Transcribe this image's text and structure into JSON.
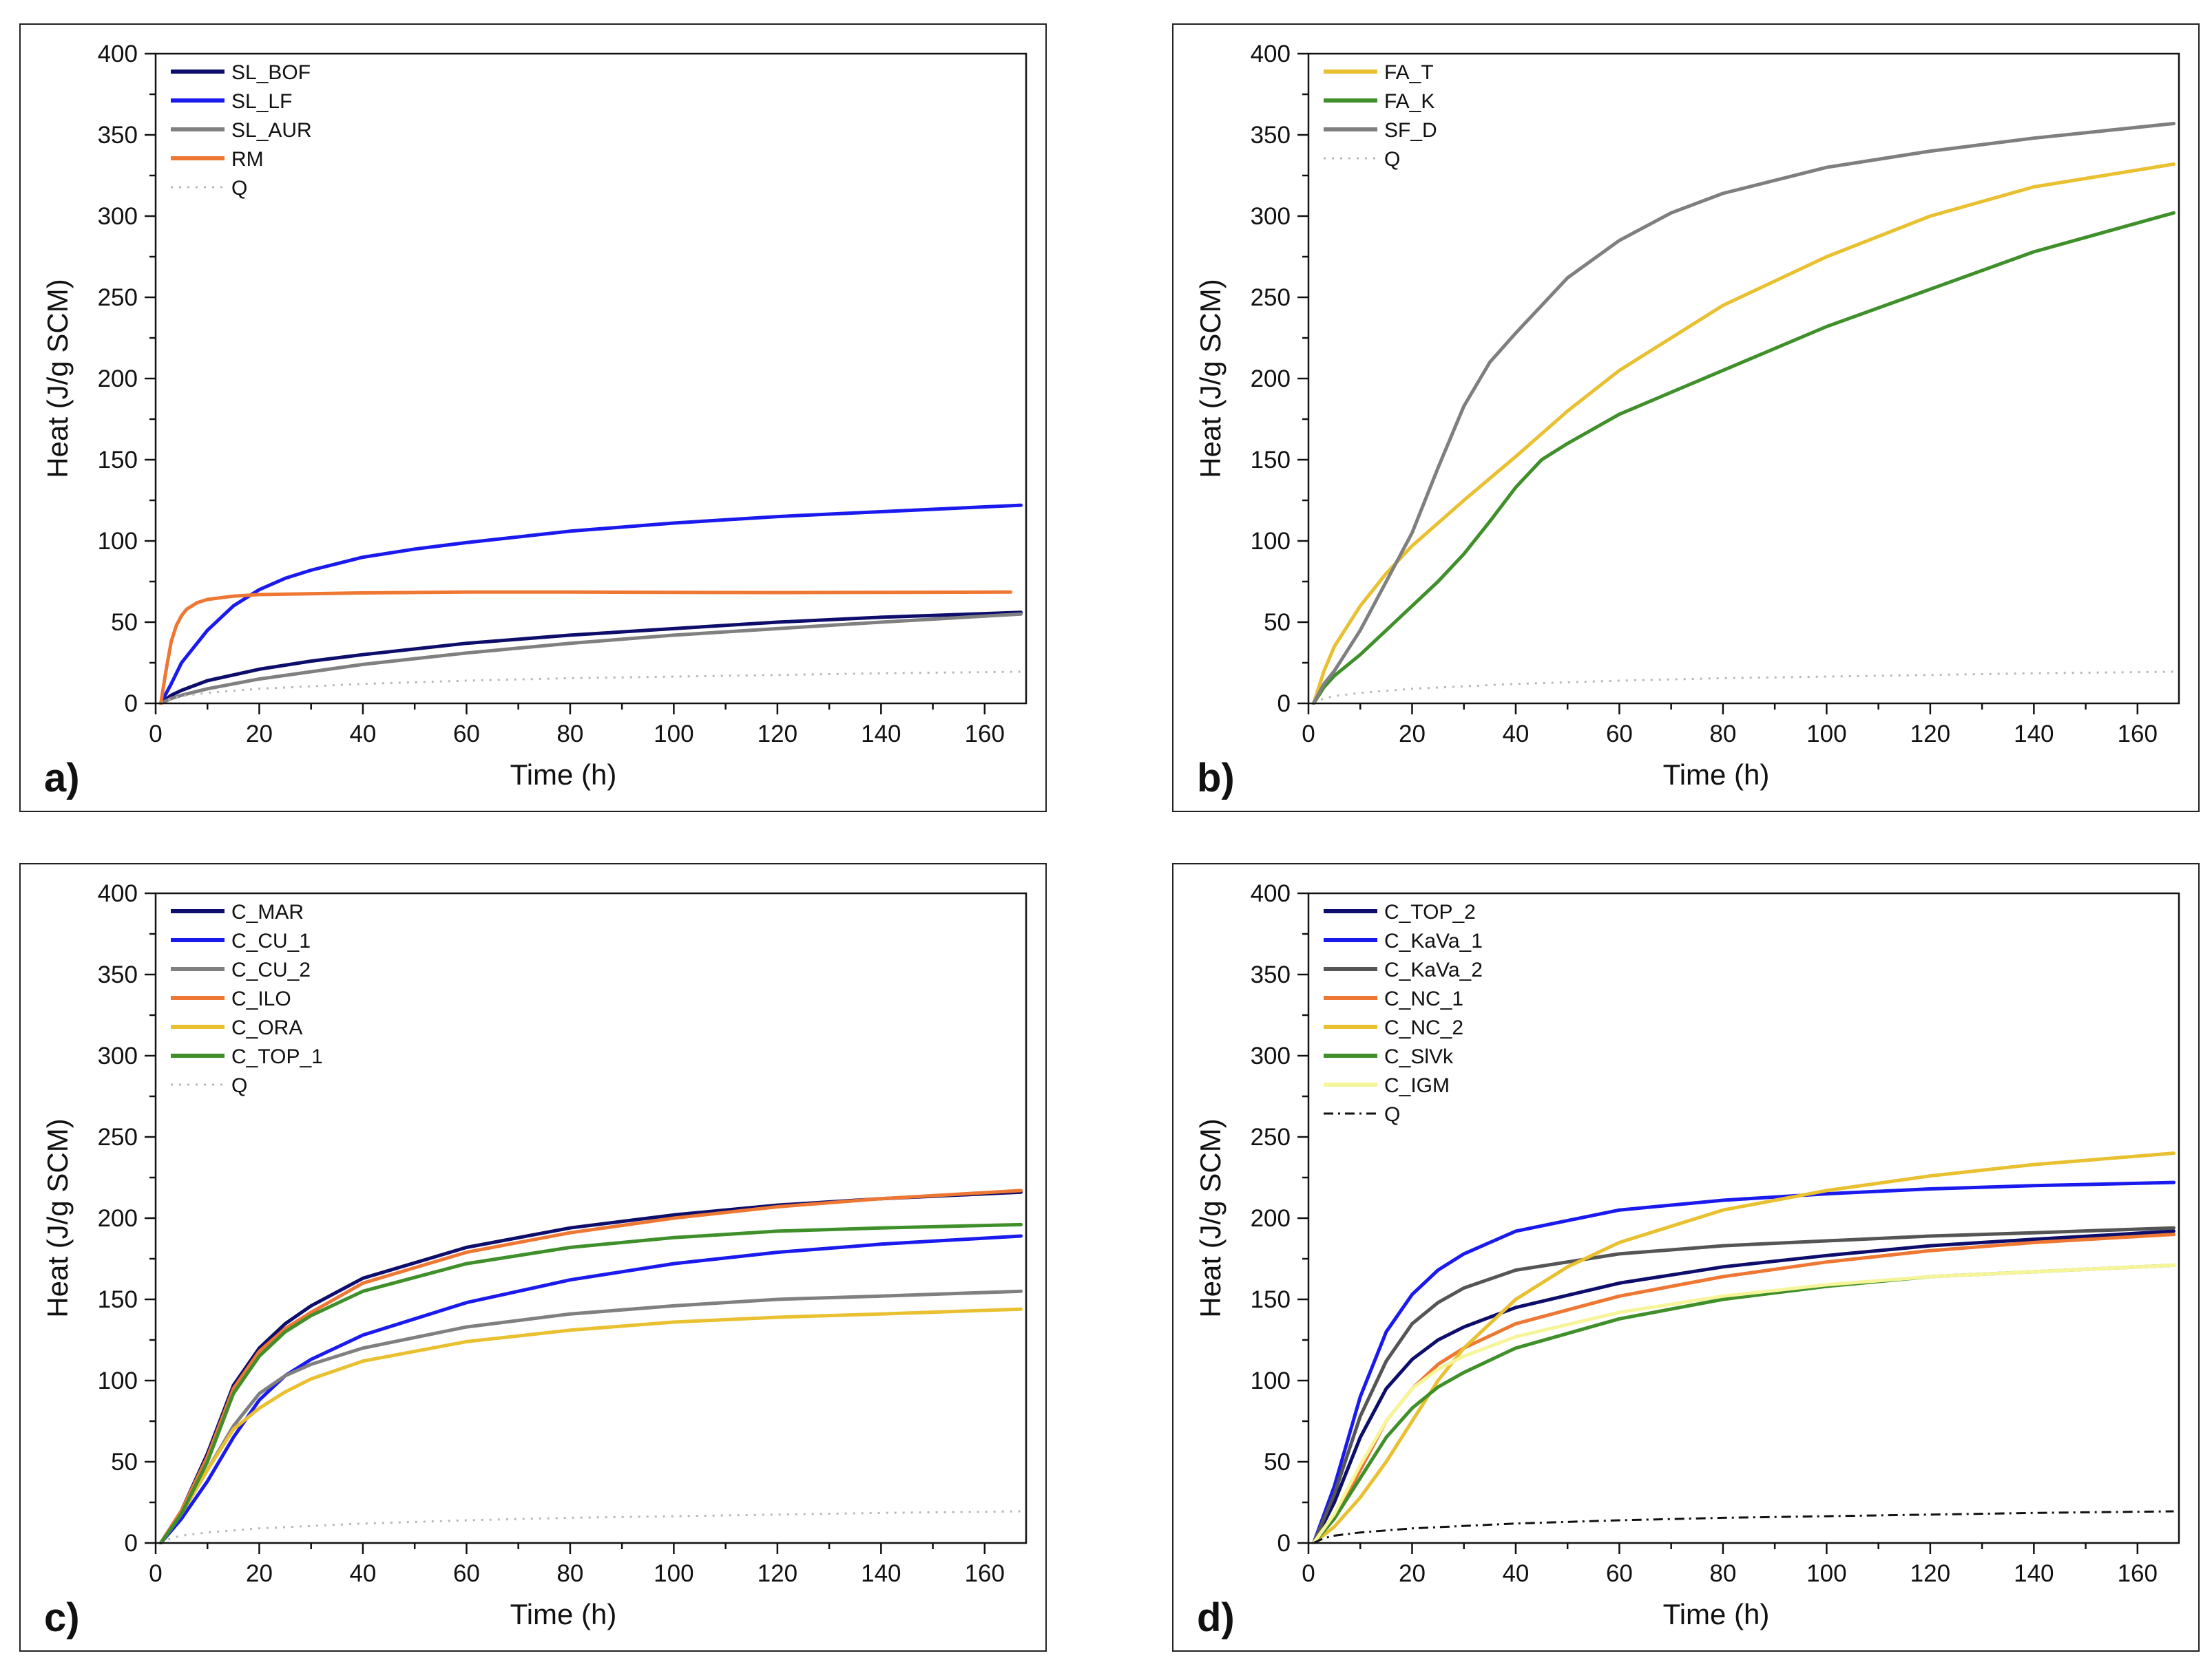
{
  "chart_data": [
    {
      "type": "line",
      "panel": "a)",
      "xlabel": "Time (h)",
      "ylabel": "Heat (J/g SCM)",
      "xlim": [
        0,
        168
      ],
      "ylim": [
        0,
        400
      ],
      "xticks": [
        0,
        20,
        40,
        60,
        80,
        100,
        120,
        140,
        160
      ],
      "yticks": [
        0,
        50,
        100,
        150,
        200,
        250,
        300,
        350,
        400
      ],
      "legend_position": "top-left",
      "series": [
        {
          "name": "SL_BOF",
          "color": "#0d0d6b",
          "dash": "solid",
          "x": [
            1,
            3,
            5,
            10,
            20,
            30,
            40,
            60,
            80,
            100,
            120,
            140,
            167
          ],
          "y": [
            0,
            5,
            8,
            14,
            21,
            26,
            30,
            37,
            42,
            46,
            50,
            53,
            56
          ]
        },
        {
          "name": "SL_LF",
          "color": "#1a1aee",
          "dash": "solid",
          "x": [
            1,
            3,
            5,
            10,
            15,
            20,
            25,
            30,
            40,
            50,
            60,
            80,
            100,
            120,
            140,
            167
          ],
          "y": [
            0,
            12,
            25,
            45,
            60,
            70,
            77,
            82,
            90,
            95,
            99,
            106,
            111,
            115,
            118,
            122
          ]
        },
        {
          "name": "SL_AUR",
          "color": "#808080",
          "dash": "solid",
          "x": [
            1,
            3,
            5,
            10,
            20,
            40,
            60,
            80,
            100,
            120,
            140,
            167
          ],
          "y": [
            0,
            3,
            5,
            9,
            15,
            24,
            31,
            37,
            42,
            46,
            50,
            55
          ]
        },
        {
          "name": "RM",
          "color": "#ee7733",
          "dash": "solid",
          "x": [
            1,
            2,
            3,
            4,
            5,
            6,
            8,
            10,
            15,
            20,
            40,
            60,
            80,
            100,
            120,
            140,
            165
          ],
          "y": [
            0,
            20,
            38,
            48,
            54,
            58,
            62,
            64,
            66,
            67,
            68,
            68.5,
            68.5,
            68.3,
            68.2,
            68.3,
            68.5
          ]
        },
        {
          "name": "Q",
          "color": "#b8b8b8",
          "dash": "dotted",
          "x": [
            1,
            3,
            5,
            10,
            20,
            40,
            60,
            80,
            100,
            120,
            140,
            167
          ],
          "y": [
            0,
            3,
            4.5,
            6.5,
            9,
            12,
            14,
            15.5,
            16.5,
            17.5,
            18.5,
            19.5
          ]
        }
      ]
    },
    {
      "type": "line",
      "panel": "b)",
      "xlabel": "Time (h)",
      "ylabel": "Heat (J/g SCM)",
      "xlim": [
        0,
        168
      ],
      "ylim": [
        0,
        400
      ],
      "xticks": [
        0,
        20,
        40,
        60,
        80,
        100,
        120,
        140,
        160
      ],
      "yticks": [
        0,
        50,
        100,
        150,
        200,
        250,
        300,
        350,
        400
      ],
      "legend_position": "top-left",
      "series": [
        {
          "name": "FA_T",
          "color": "#e8c030",
          "dash": "solid",
          "x": [
            1,
            3,
            5,
            10,
            15,
            20,
            30,
            40,
            50,
            60,
            80,
            100,
            120,
            140,
            167
          ],
          "y": [
            0,
            20,
            35,
            60,
            80,
            97,
            125,
            152,
            180,
            205,
            245,
            275,
            300,
            318,
            332
          ]
        },
        {
          "name": "FA_K",
          "color": "#3f8f2a",
          "dash": "solid",
          "x": [
            1,
            3,
            5,
            10,
            15,
            20,
            25,
            30,
            35,
            40,
            45,
            50,
            60,
            80,
            100,
            120,
            140,
            167
          ],
          "y": [
            0,
            10,
            17,
            30,
            45,
            60,
            75,
            92,
            112,
            133,
            150,
            160,
            178,
            205,
            232,
            255,
            278,
            302
          ]
        },
        {
          "name": "SF_D",
          "color": "#7f7f7f",
          "dash": "solid",
          "x": [
            1,
            3,
            5,
            10,
            15,
            20,
            25,
            30,
            35,
            40,
            50,
            60,
            70,
            80,
            100,
            120,
            140,
            167
          ],
          "y": [
            0,
            12,
            20,
            45,
            75,
            105,
            145,
            183,
            210,
            228,
            262,
            285,
            302,
            314,
            330,
            340,
            348,
            357
          ]
        },
        {
          "name": "Q",
          "color": "#b8b8b8",
          "dash": "dotted",
          "x": [
            1,
            3,
            5,
            10,
            20,
            40,
            60,
            80,
            100,
            120,
            140,
            167
          ],
          "y": [
            0,
            3,
            4.5,
            6.5,
            9,
            12,
            14,
            15.5,
            16.5,
            17.5,
            18.5,
            19.5
          ]
        }
      ]
    },
    {
      "type": "line",
      "panel": "c)",
      "xlabel": "Time (h)",
      "ylabel": "Heat (J/g SCM)",
      "xlim": [
        0,
        168
      ],
      "ylim": [
        0,
        400
      ],
      "xticks": [
        0,
        20,
        40,
        60,
        80,
        100,
        120,
        140,
        160
      ],
      "yticks": [
        0,
        50,
        100,
        150,
        200,
        250,
        300,
        350,
        400
      ],
      "legend_position": "top-left",
      "series": [
        {
          "name": "C_MAR",
          "color": "#0d0d6b",
          "dash": "solid",
          "x": [
            1,
            5,
            10,
            15,
            20,
            25,
            30,
            40,
            60,
            80,
            100,
            120,
            140,
            167
          ],
          "y": [
            0,
            20,
            55,
            97,
            120,
            135,
            146,
            163,
            182,
            194,
            202,
            208,
            212,
            216
          ]
        },
        {
          "name": "C_CU_1",
          "color": "#1a1aee",
          "dash": "solid",
          "x": [
            1,
            5,
            10,
            15,
            20,
            25,
            30,
            40,
            60,
            80,
            100,
            120,
            140,
            167
          ],
          "y": [
            0,
            15,
            38,
            65,
            88,
            103,
            113,
            128,
            148,
            162,
            172,
            179,
            184,
            189
          ]
        },
        {
          "name": "C_CU_2",
          "color": "#808080",
          "dash": "solid",
          "x": [
            1,
            5,
            10,
            15,
            20,
            25,
            30,
            40,
            60,
            80,
            100,
            120,
            140,
            167
          ],
          "y": [
            0,
            18,
            45,
            72,
            92,
            103,
            110,
            120,
            133,
            141,
            146,
            150,
            152,
            155
          ]
        },
        {
          "name": "C_ILO",
          "color": "#ee7733",
          "dash": "solid",
          "x": [
            1,
            5,
            10,
            15,
            20,
            25,
            30,
            40,
            60,
            80,
            100,
            120,
            140,
            167
          ],
          "y": [
            0,
            20,
            53,
            95,
            118,
            132,
            142,
            160,
            179,
            191,
            200,
            207,
            212,
            217
          ]
        },
        {
          "name": "C_ORA",
          "color": "#e8c030",
          "dash": "solid",
          "x": [
            1,
            5,
            10,
            15,
            20,
            25,
            30,
            40,
            60,
            80,
            100,
            120,
            140,
            167
          ],
          "y": [
            0,
            18,
            45,
            70,
            83,
            93,
            101,
            112,
            124,
            131,
            136,
            139,
            141,
            144
          ]
        },
        {
          "name": "C_TOP_1",
          "color": "#3f8f2a",
          "dash": "solid",
          "x": [
            1,
            5,
            10,
            15,
            20,
            25,
            30,
            40,
            60,
            80,
            100,
            120,
            140,
            167
          ],
          "y": [
            0,
            18,
            50,
            92,
            115,
            130,
            140,
            155,
            172,
            182,
            188,
            192,
            194,
            196
          ]
        },
        {
          "name": "Q",
          "color": "#b8b8b8",
          "dash": "dotted",
          "x": [
            1,
            3,
            5,
            10,
            20,
            40,
            60,
            80,
            100,
            120,
            140,
            167
          ],
          "y": [
            0,
            3,
            4.5,
            6.5,
            9,
            12,
            14,
            15.5,
            16.5,
            17.5,
            18.5,
            19.5
          ]
        }
      ]
    },
    {
      "type": "line",
      "panel": "d)",
      "xlabel": "Time (h)",
      "ylabel": "Heat (J/g SCM)",
      "xlim": [
        0,
        168
      ],
      "ylim": [
        0,
        400
      ],
      "xticks": [
        0,
        20,
        40,
        60,
        80,
        100,
        120,
        140,
        160
      ],
      "yticks": [
        0,
        50,
        100,
        150,
        200,
        250,
        300,
        350,
        400
      ],
      "legend_position": "top-left",
      "series": [
        {
          "name": "C_TOP_2",
          "color": "#0d0d6b",
          "dash": "solid",
          "x": [
            1,
            5,
            10,
            15,
            20,
            25,
            30,
            40,
            60,
            80,
            100,
            120,
            140,
            167
          ],
          "y": [
            0,
            25,
            65,
            95,
            113,
            125,
            133,
            145,
            160,
            170,
            177,
            183,
            187,
            192
          ]
        },
        {
          "name": "C_KaVa_1",
          "color": "#1a1aee",
          "dash": "solid",
          "x": [
            1,
            5,
            10,
            15,
            20,
            25,
            30,
            40,
            60,
            80,
            100,
            120,
            140,
            167
          ],
          "y": [
            0,
            35,
            90,
            130,
            153,
            168,
            178,
            192,
            205,
            211,
            215,
            218,
            220,
            222
          ]
        },
        {
          "name": "C_KaVa_2",
          "color": "#555555",
          "dash": "solid",
          "x": [
            1,
            5,
            10,
            15,
            20,
            25,
            30,
            40,
            60,
            80,
            100,
            120,
            140,
            167
          ],
          "y": [
            0,
            30,
            78,
            112,
            135,
            148,
            157,
            168,
            178,
            183,
            186,
            189,
            191,
            194
          ]
        },
        {
          "name": "C_NC_1",
          "color": "#ee7733",
          "dash": "solid",
          "x": [
            1,
            5,
            10,
            15,
            20,
            25,
            30,
            40,
            60,
            80,
            100,
            120,
            140,
            167
          ],
          "y": [
            0,
            15,
            45,
            75,
            95,
            110,
            120,
            135,
            152,
            164,
            173,
            180,
            185,
            190
          ]
        },
        {
          "name": "C_NC_2",
          "color": "#e8c030",
          "dash": "solid",
          "x": [
            1,
            5,
            10,
            15,
            20,
            25,
            30,
            40,
            50,
            60,
            80,
            100,
            120,
            140,
            167
          ],
          "y": [
            0,
            10,
            28,
            50,
            75,
            100,
            120,
            150,
            170,
            185,
            205,
            217,
            226,
            233,
            240
          ]
        },
        {
          "name": "C_SlVk",
          "color": "#3f8f2a",
          "dash": "solid",
          "x": [
            1,
            5,
            10,
            15,
            20,
            25,
            30,
            40,
            60,
            80,
            100,
            120,
            140,
            167
          ],
          "y": [
            0,
            15,
            40,
            65,
            83,
            96,
            105,
            120,
            138,
            150,
            158,
            164,
            167,
            171
          ]
        },
        {
          "name": "C_IGM",
          "color": "#f7f59a",
          "dash": "solid",
          "x": [
            1,
            5,
            10,
            15,
            20,
            25,
            30,
            40,
            60,
            80,
            100,
            120,
            140,
            167
          ],
          "y": [
            0,
            18,
            48,
            75,
            95,
            107,
            115,
            127,
            142,
            152,
            159,
            164,
            167,
            171
          ]
        },
        {
          "name": "Q",
          "color": "#111111",
          "dash": "dashdot",
          "x": [
            1,
            3,
            5,
            10,
            20,
            40,
            60,
            80,
            100,
            120,
            140,
            167
          ],
          "y": [
            0,
            3,
            4.5,
            6.5,
            9,
            12,
            14,
            15.5,
            16.5,
            17.5,
            18.5,
            19.5
          ]
        }
      ]
    }
  ]
}
